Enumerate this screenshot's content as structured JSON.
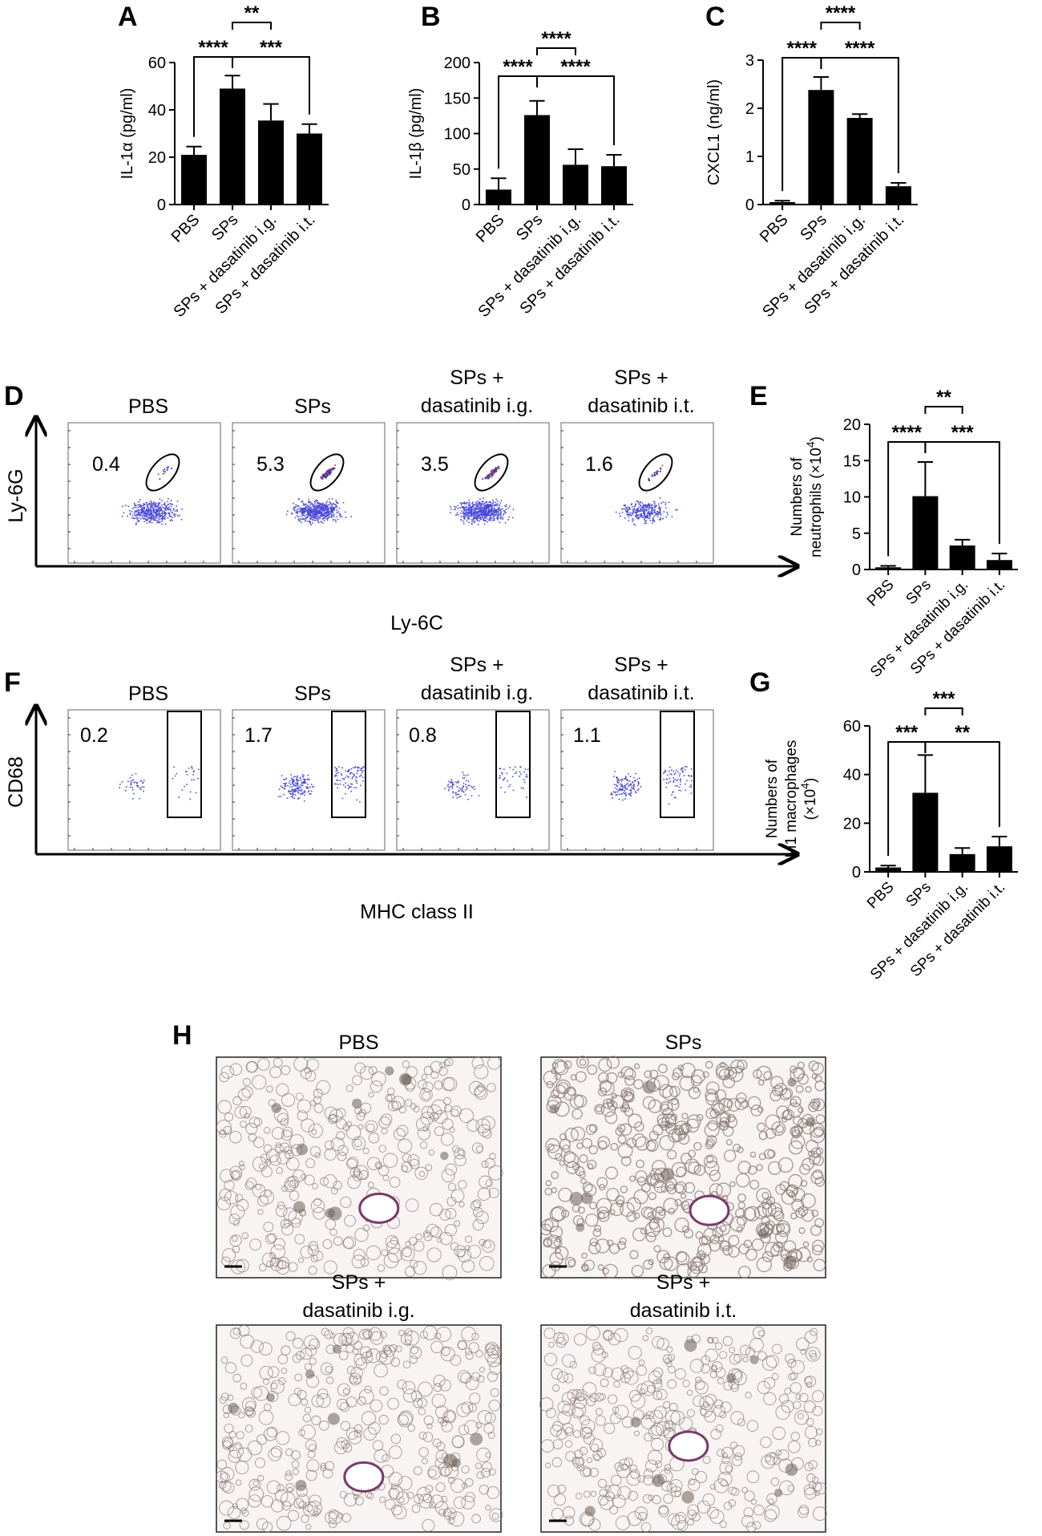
{
  "panel_letters": {
    "A": "A",
    "B": "B",
    "C": "C",
    "D": "D",
    "E": "E",
    "F": "F",
    "G": "G",
    "H": "H"
  },
  "groups": [
    "PBS",
    "SPs",
    "SPs + dasatinib i.g.",
    "SPs + dasatinib i.t."
  ],
  "chart_data": [
    {
      "panel": "A",
      "type": "bar",
      "categories": [
        "PBS",
        "SPs",
        "SPs + dasatinib i.g.",
        "SPs + dasatinib i.t."
      ],
      "values": [
        21,
        49,
        35.5,
        30
      ],
      "errors": [
        3.5,
        5.5,
        7,
        4
      ],
      "ylabel": "IL-1α (pg/ml)",
      "ylim": [
        0,
        60
      ],
      "yticks": [
        "0",
        "20",
        "40",
        "60"
      ],
      "significance": [
        {
          "from": 0,
          "to": 1,
          "label": "****"
        },
        {
          "from": 1,
          "to": 3,
          "label": "***"
        },
        {
          "from": 1,
          "to": 2,
          "label": "**"
        }
      ]
    },
    {
      "panel": "B",
      "type": "bar",
      "categories": [
        "PBS",
        "SPs",
        "SPs + dasatinib i.g.",
        "SPs + dasatinib i.t."
      ],
      "values": [
        21,
        126,
        56,
        54
      ],
      "errors": [
        16,
        20,
        22,
        16
      ],
      "ylabel": "IL-1β (pg/ml)",
      "ylim": [
        0,
        200
      ],
      "yticks": [
        "0",
        "50",
        "100",
        "150",
        "200"
      ],
      "significance": [
        {
          "from": 0,
          "to": 1,
          "label": "****"
        },
        {
          "from": 1,
          "to": 3,
          "label": "****"
        },
        {
          "from": 1,
          "to": 2,
          "label": "****"
        }
      ]
    },
    {
      "panel": "C",
      "type": "bar",
      "categories": [
        "PBS",
        "SPs",
        "SPs + dasatinib i.g.",
        "SPs + dasatinib i.t."
      ],
      "values": [
        0.05,
        2.38,
        1.8,
        0.38
      ],
      "errors": [
        0.03,
        0.27,
        0.08,
        0.07
      ],
      "ylabel": "CXCL1 (ng/ml)",
      "ylim": [
        0,
        3
      ],
      "yticks": [
        "0",
        "1",
        "2",
        "3"
      ],
      "significance": [
        {
          "from": 0,
          "to": 1,
          "label": "****"
        },
        {
          "from": 1,
          "to": 3,
          "label": "****"
        },
        {
          "from": 1,
          "to": 2,
          "label": "****"
        }
      ]
    },
    {
      "panel": "E",
      "type": "bar",
      "categories": [
        "PBS",
        "SPs",
        "SPs + dasatinib i.g.",
        "SPs + dasatinib i.t."
      ],
      "values": [
        0.3,
        10.1,
        3.3,
        1.3
      ],
      "errors": [
        0.2,
        4.7,
        0.8,
        0.9
      ],
      "ylabel_line1": "Numbers of",
      "ylabel_line2": "neutrophils (×10",
      "ylabel_sup": "4",
      "ylabel_end": ")",
      "ylim": [
        0,
        20
      ],
      "yticks": [
        "0",
        "5",
        "10",
        "15",
        "20"
      ],
      "significance": [
        {
          "from": 0,
          "to": 1,
          "label": "****"
        },
        {
          "from": 1,
          "to": 3,
          "label": "***"
        },
        {
          "from": 1,
          "to": 2,
          "label": "**"
        }
      ]
    },
    {
      "panel": "G",
      "type": "bar",
      "categories": [
        "PBS",
        "SPs",
        "SPs + dasatinib i.g.",
        "SPs + dasatinib i.t."
      ],
      "values": [
        1.8,
        32.5,
        7.3,
        10.5
      ],
      "errors": [
        0.8,
        15.5,
        2.5,
        4
      ],
      "ylabel_line1": "Numbers of",
      "ylabel_line2": "M1 macrophages",
      "ylabel_line3": "(×10",
      "ylabel_sup": "4",
      "ylabel_end": ")",
      "ylim": [
        0,
        60
      ],
      "yticks": [
        "0",
        "20",
        "40",
        "60"
      ],
      "significance": [
        {
          "from": 0,
          "to": 1,
          "label": "***"
        },
        {
          "from": 1,
          "to": 3,
          "label": "**"
        },
        {
          "from": 1,
          "to": 2,
          "label": "***"
        }
      ]
    }
  ],
  "flow_D": {
    "x_axis_label": "Ly-6C",
    "y_axis_label": "Ly-6G",
    "titles": [
      [
        "PBS"
      ],
      [
        "SPs"
      ],
      [
        "SPs +",
        "dasatinib i.g."
      ],
      [
        "SPs +",
        "dasatinib i.t."
      ]
    ],
    "percentages": [
      "0.4",
      "5.3",
      "3.5",
      "1.6"
    ]
  },
  "flow_F": {
    "x_axis_label": "MHC class II",
    "y_axis_label": "CD68",
    "titles": [
      [
        "PBS"
      ],
      [
        "SPs"
      ],
      [
        "SPs +",
        "dasatinib i.g."
      ],
      [
        "SPs +",
        "dasatinib i.t."
      ]
    ],
    "percentages": [
      "0.2",
      "1.7",
      "0.8",
      "1.1"
    ]
  },
  "histology_H": {
    "titles": [
      [
        "PBS"
      ],
      [
        "SPs"
      ],
      [
        "SPs +",
        "dasatinib i.g."
      ],
      [
        "SPs +",
        "dasatinib i.t."
      ]
    ]
  },
  "colors": {
    "bar": "#000000",
    "dots": "#4a4ad8",
    "tissue": "#8a7a75",
    "tissue_bg": "#f7f4f3"
  }
}
